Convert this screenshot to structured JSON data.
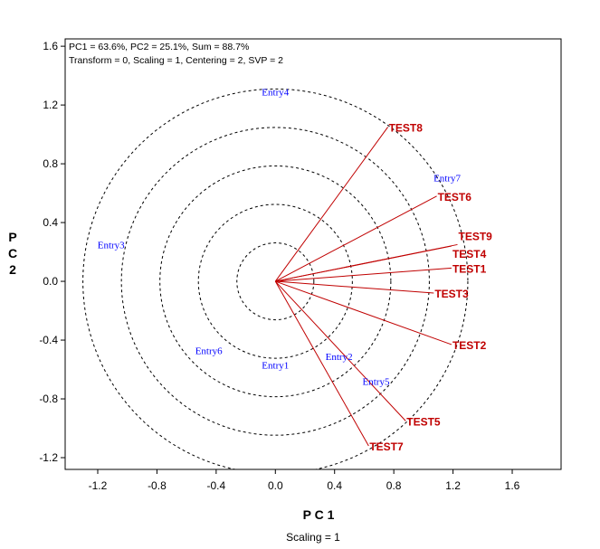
{
  "chart_data": {
    "type": "scatter",
    "subtype": "biplot",
    "info_lines": [
      "PC1 = 63.6%, PC2 = 25.1%, Sum = 88.7%",
      "Transform = 0, Scaling = 1, Centering = 2, SVP = 2"
    ],
    "xlabel": "P C 1",
    "ylabel": [
      "P",
      "C",
      "2"
    ],
    "subtitle": "Scaling = 1",
    "xlim": [
      -1.42,
      1.93
    ],
    "ylim": [
      -1.28,
      1.65
    ],
    "xticks": [
      "-1.2",
      "-0.8",
      "-0.4",
      "0.0",
      "0.4",
      "0.8",
      "1.2",
      "1.6"
    ],
    "xtick_values": [
      -1.2,
      -0.8,
      -0.4,
      0,
      0.4,
      0.8,
      1.2,
      1.6
    ],
    "yticks": [
      "1.6",
      "1.2",
      "0.8",
      "0.4",
      "0.0",
      "-0.4",
      "-0.8",
      "-1.2"
    ],
    "ytick_values": [
      1.6,
      1.2,
      0.8,
      0.4,
      0,
      -0.4,
      -0.8,
      -1.2
    ],
    "circle_radii": [
      0.26,
      0.52,
      0.78,
      1.04,
      1.3
    ],
    "entries": [
      {
        "label": "Entry1",
        "x": 0.0,
        "y": -0.57
      },
      {
        "label": "Entry2",
        "x": 0.43,
        "y": -0.51
      },
      {
        "label": "Entry3",
        "x": -1.11,
        "y": 0.25
      },
      {
        "label": "Entry4",
        "x": 0.0,
        "y": 1.29
      },
      {
        "label": "Entry5",
        "x": 0.68,
        "y": -0.68
      },
      {
        "label": "Entry6",
        "x": -0.45,
        "y": -0.47
      },
      {
        "label": "Entry7",
        "x": 1.16,
        "y": 0.65
      }
    ],
    "testers": [
      {
        "label": "TEST1",
        "x": 1.19,
        "y": 0.09
      },
      {
        "label": "TEST2",
        "x": 1.19,
        "y": -0.43
      },
      {
        "label": "TEST3",
        "x": 1.07,
        "y": -0.08
      },
      {
        "label": "TEST4",
        "x": 1.19,
        "y": 0.24
      },
      {
        "label": "TEST5",
        "x": 0.88,
        "y": -0.95
      },
      {
        "label": "TEST6",
        "x": 1.09,
        "y": 0.58
      },
      {
        "label": "TEST7",
        "x": 0.63,
        "y": -1.12
      },
      {
        "label": "TEST8",
        "x": 0.76,
        "y": 1.05
      },
      {
        "label": "TEST9",
        "x": 1.23,
        "y": 0.25
      }
    ],
    "colors": {
      "entry": "#0000ff",
      "tester": "#c00000"
    }
  }
}
